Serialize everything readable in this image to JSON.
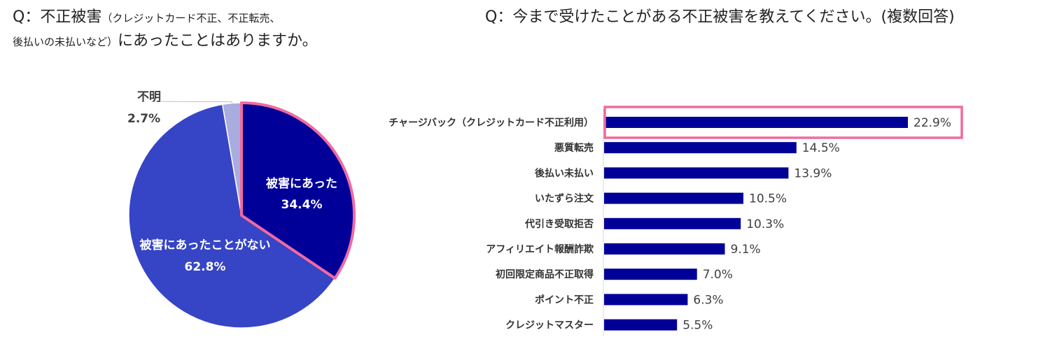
{
  "questions": {
    "q1_prefix": "Q：不正被害",
    "q1_paren_start": "（クレジットカード不正、不正転売、",
    "q1_paren_end": "後払いの未払いなど）",
    "q1_suffix": "にあったことはありますか。",
    "q2": "Q：今まで受けたことがある不正被害を教えてください。(複数回答)"
  },
  "colors": {
    "highlight": "#f06aa0",
    "bar": "#000099",
    "pie_damaged": "#000099",
    "pie_not_damaged": "#3644c6",
    "pie_unknown": "#a9acdf"
  },
  "chart_data": [
    {
      "type": "pie",
      "slices": [
        {
          "label": "被害にあった",
          "value": 34.4,
          "value_label": "34.4%",
          "color": "#000099",
          "highlighted": true
        },
        {
          "label": "被害にあったことがない",
          "value": 62.8,
          "value_label": "62.8%",
          "color": "#3644c6"
        },
        {
          "label": "不明",
          "value": 2.7,
          "value_label": "2.7%",
          "color": "#a9acdf"
        }
      ],
      "start": "12 o'clock",
      "direction": "clockwise"
    },
    {
      "type": "bar",
      "orientation": "horizontal",
      "categories": [
        "チャージバック（クレジットカード不正利用）",
        "悪質転売",
        "後払い未払い",
        "いたずら注文",
        "代引き受取拒否",
        "アフィリエイト報酬詐欺",
        "初回限定商品不正取得",
        "ポイント不正",
        "クレジットマスター"
      ],
      "values": [
        22.9,
        14.5,
        13.9,
        10.5,
        10.3,
        9.1,
        7.0,
        6.3,
        5.5
      ],
      "value_labels": [
        "22.9%",
        "14.5%",
        "13.9%",
        "10.5%",
        "10.3%",
        "9.1%",
        "7.0%",
        "6.3%",
        "5.5%"
      ],
      "highlighted_index": 0,
      "unit": "%"
    }
  ]
}
